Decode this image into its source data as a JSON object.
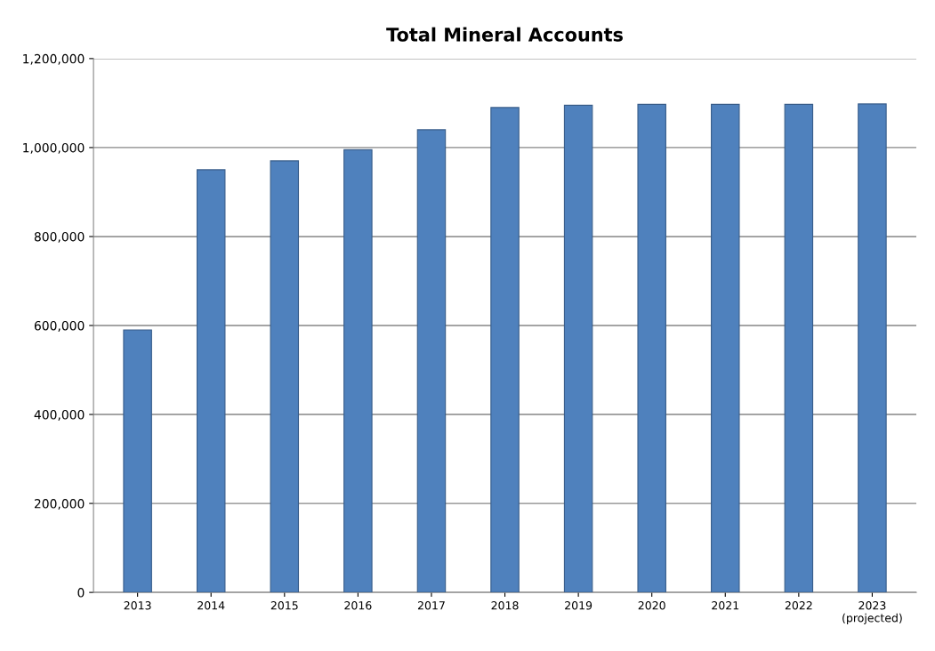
{
  "chart_data": {
    "type": "bar",
    "title": "Total Mineral Accounts",
    "categories": [
      "2013",
      "2014",
      "2015",
      "2016",
      "2017",
      "2018",
      "2019",
      "2020",
      "2021",
      "2022",
      "2023\n(projected)"
    ],
    "values": [
      590000,
      950000,
      970000,
      995000,
      1040000,
      1090000,
      1095000,
      1097000,
      1097000,
      1097000,
      1098000
    ],
    "color": "#4f81bd",
    "ylim": [
      0,
      1200000
    ],
    "yticks": [
      {
        "value": 0,
        "label": "0"
      },
      {
        "value": 200000,
        "label": "200,000"
      },
      {
        "value": 400000,
        "label": "400,000"
      },
      {
        "value": 600000,
        "label": "600,000"
      },
      {
        "value": 800000,
        "label": "800,000"
      },
      {
        "value": 1000000,
        "label": "1,000,000"
      },
      {
        "value": 1200000,
        "label": "1,200,000"
      }
    ],
    "grid": "y",
    "legend": false
  }
}
